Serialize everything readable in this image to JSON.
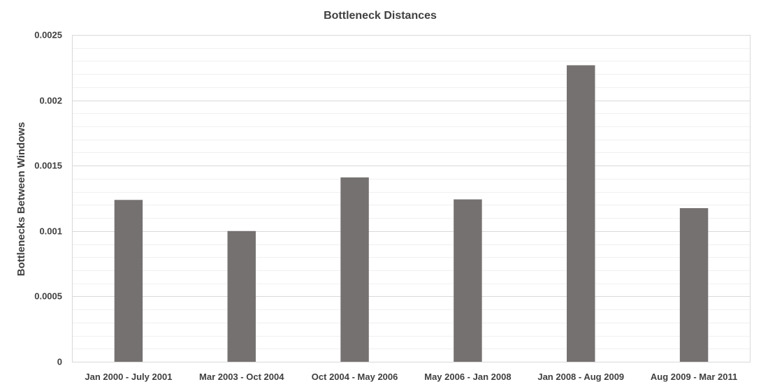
{
  "chart_data": {
    "type": "bar",
    "title": "Bottleneck Distances",
    "xlabel": "",
    "ylabel": "Bottlenecks Between Windows",
    "categories": [
      "Jan 2000 - July 2001",
      "Mar 2003 - Oct 2004",
      "Oct 2004 - May 2006",
      "May 2006 - Jan 2008",
      "Jan 2008 - Aug 2009",
      "Aug 2009 - Mar 2011"
    ],
    "values": [
      0.001238,
      0.001,
      0.00141,
      0.001242,
      0.002268,
      0.001175
    ],
    "ylim": [
      0,
      0.0025
    ],
    "yticks": [
      0,
      0.0005,
      0.001,
      0.0015,
      0.002,
      0.0025
    ],
    "ytick_labels": [
      "0",
      "0.0005",
      "0.001",
      "0.0015",
      "0.002",
      "0.0025"
    ],
    "grid": true,
    "minor_grid": true,
    "legend": "none",
    "bar_color": "#767171",
    "gridline_color": "#d9d9d9",
    "minor_gridline_color": "#f0f0f0",
    "axis_color": "#d9d9d9"
  }
}
